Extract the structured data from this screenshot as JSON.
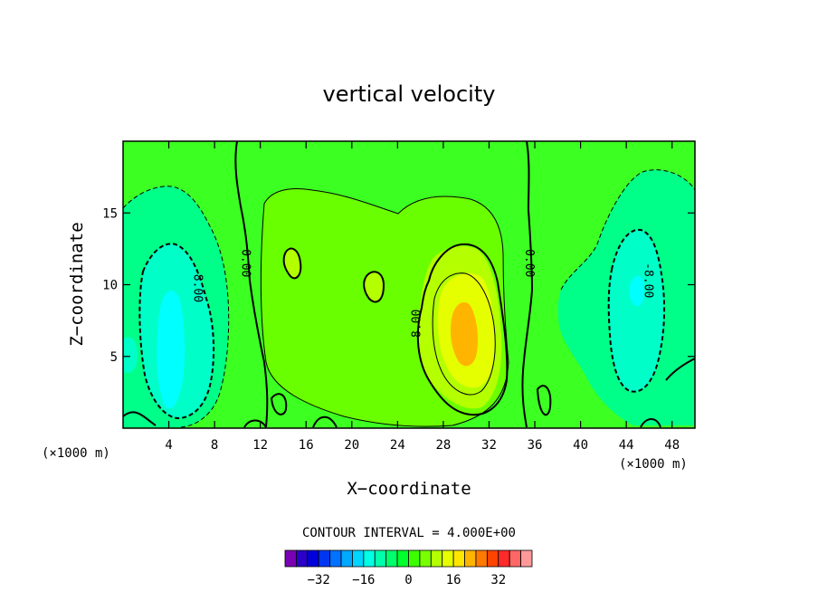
{
  "chart_data": {
    "type": "heatmap",
    "title": "vertical velocity",
    "xlabel": "X−coordinate",
    "ylabel": "Z−coordinate",
    "x_unit_left": "(×1000 m)",
    "x_unit_right": "(×1000 m)",
    "xlim": [
      0,
      50
    ],
    "ylim": [
      0,
      20
    ],
    "x_ticks": [
      4,
      8,
      12,
      16,
      20,
      24,
      28,
      32,
      36,
      40,
      44,
      48
    ],
    "y_ticks": [
      5,
      10,
      15
    ],
    "contour_interval_text": "CONTOUR INTERVAL = 4.000E+00",
    "contour_labels": [
      {
        "text": "0.00",
        "x": 10.8,
        "y": 11.5,
        "angle": 90
      },
      {
        "text": "0.00",
        "x": 35.6,
        "y": 11.5,
        "angle": 90
      },
      {
        "text": "8.00",
        "x": 25.6,
        "y": 7.3,
        "angle": -90
      },
      {
        "text": "-8.00",
        "x": 6.6,
        "y": 10.0,
        "angle": 90
      },
      {
        "text": "-8.00",
        "x": 46.0,
        "y": 10.3,
        "angle": 90
      }
    ],
    "colorbar": {
      "colors": [
        "#7a00b4",
        "#2b00c8",
        "#0000dc",
        "#0036f0",
        "#0072ff",
        "#00a8ff",
        "#00d4ff",
        "#00ffe4",
        "#00ffaa",
        "#00ff6a",
        "#00ff2c",
        "#3cff00",
        "#78ff00",
        "#b4ff00",
        "#e6ff00",
        "#ffe600",
        "#ffb400",
        "#ff7a00",
        "#ff4400",
        "#ff2a2a",
        "#ff6666",
        "#ff9999"
      ],
      "tick_labels": [
        "−32",
        "−16",
        "0",
        "16",
        "32"
      ],
      "tick_values": [
        -32,
        -16,
        0,
        16,
        32
      ]
    },
    "field": {
      "background": "#3cff22",
      "features": [
        {
          "name": "updraft-plateau",
          "color": "#6aff00"
        },
        {
          "name": "updraft-core-1",
          "color": "#b4ff00"
        },
        {
          "name": "updraft-core-2",
          "color": "#e6ff00"
        },
        {
          "name": "updraft-core-3",
          "color": "#ffb400"
        },
        {
          "name": "left-downdraft-1",
          "color": "#00ff88"
        },
        {
          "name": "left-downdraft-2",
          "color": "#00ffc8"
        },
        {
          "name": "left-downdraft-3",
          "color": "#00ffff"
        },
        {
          "name": "right-downdraft-1",
          "color": "#00ff88"
        },
        {
          "name": "right-downdraft-2",
          "color": "#00ffc8"
        }
      ]
    }
  }
}
